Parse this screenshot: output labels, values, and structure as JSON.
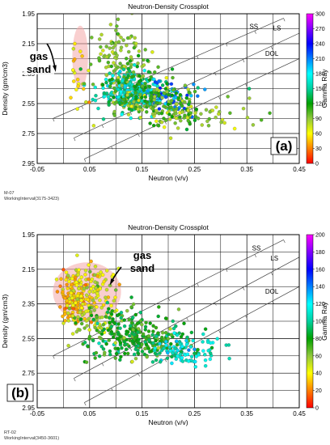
{
  "chart_data": [
    {
      "type": "scatter",
      "title": "Neutron-Density Crossplot",
      "xlabel": "Neutron (v/v)",
      "ylabel": "Density (gm/cm3)",
      "colorbar_label": "Gamma Ray",
      "xlim": [
        -0.05,
        0.45
      ],
      "ylim": [
        1.95,
        2.95
      ],
      "y_inverted": true,
      "x_ticks": [
        "-0.05",
        "0.05",
        "0.15",
        "0.25",
        "0.35",
        "0.45"
      ],
      "y_ticks": [
        "1.95",
        "2.15",
        "2.35",
        "2.55",
        "2.75",
        "2.95"
      ],
      "colorbar_range": [
        0,
        300
      ],
      "colorbar_ticks": [
        "300",
        "270",
        "240",
        "210",
        "180",
        "150",
        "120",
        "90",
        "60",
        "30",
        "0"
      ],
      "lithology_lines": [
        "SS",
        "LS",
        "DOL"
      ],
      "annotation": "gas sand",
      "panel_label": "(a)",
      "footer": [
        "M-07",
        "WorkingInterval(3175-3423)"
      ],
      "grid": true,
      "clusters": [
        {
          "cx": 0.03,
          "cy": 2.38,
          "sx": 0.012,
          "sy": 0.16,
          "gr": 60,
          "grs": 12,
          "n": 22
        },
        {
          "cx": 0.11,
          "cy": 2.22,
          "sx": 0.025,
          "sy": 0.13,
          "gr": 90,
          "grs": 12,
          "n": 100
        },
        {
          "cx": 0.13,
          "cy": 2.48,
          "sx": 0.03,
          "sy": 0.06,
          "gr": 160,
          "grs": 18,
          "n": 220
        },
        {
          "cx": 0.2,
          "cy": 2.5,
          "sx": 0.025,
          "sy": 0.045,
          "gr": 215,
          "grs": 12,
          "n": 70
        },
        {
          "cx": 0.17,
          "cy": 2.53,
          "sx": 0.04,
          "sy": 0.05,
          "gr": 100,
          "grs": 18,
          "n": 120
        },
        {
          "cx": 0.22,
          "cy": 2.63,
          "sx": 0.035,
          "sy": 0.05,
          "gr": 100,
          "grs": 15,
          "n": 60
        },
        {
          "cx": 0.14,
          "cy": 2.42,
          "sx": 0.04,
          "sy": 0.08,
          "gr": 110,
          "grs": 15,
          "n": 80
        },
        {
          "cx": 0.3,
          "cy": 2.62,
          "sx": 0.04,
          "sy": 0.05,
          "gr": 90,
          "grs": 12,
          "n": 25
        }
      ]
    },
    {
      "type": "scatter",
      "title": "Neutron-Density Crossplot",
      "xlabel": "Neutron (v/v)",
      "ylabel": "Density (gm/cm3)",
      "colorbar_label": "Gamma Ray",
      "xlim": [
        -0.05,
        0.45
      ],
      "ylim": [
        1.95,
        2.95
      ],
      "y_inverted": true,
      "x_ticks": [
        "-0.05",
        "0.05",
        "0.15",
        "0.25",
        "0.35",
        "0.45"
      ],
      "y_ticks": [
        "1.95",
        "2.15",
        "2.35",
        "2.55",
        "2.75",
        "2.95"
      ],
      "colorbar_range": [
        0,
        200
      ],
      "colorbar_ticks": [
        "200",
        "180",
        "160",
        "140",
        "120",
        "100",
        "80",
        "60",
        "40",
        "20",
        "0"
      ],
      "lithology_lines": [
        "SS",
        "LS",
        "DOL"
      ],
      "annotation": "gas sand",
      "panel_label": "(b)",
      "footer": [
        "RT-02",
        "WorkingInterval(3450-3601)"
      ],
      "grid": true,
      "clusters": [
        {
          "cx": 0.02,
          "cy": 2.32,
          "sx": 0.015,
          "sy": 0.07,
          "gr": 30,
          "grs": 8,
          "n": 130
        },
        {
          "cx": 0.05,
          "cy": 2.25,
          "sx": 0.025,
          "sy": 0.09,
          "gr": 45,
          "grs": 10,
          "n": 110
        },
        {
          "cx": 0.06,
          "cy": 2.45,
          "sx": 0.03,
          "sy": 0.06,
          "gr": 55,
          "grs": 10,
          "n": 60
        },
        {
          "cx": 0.14,
          "cy": 2.55,
          "sx": 0.05,
          "sy": 0.06,
          "gr": 80,
          "grs": 12,
          "n": 260
        },
        {
          "cx": 0.23,
          "cy": 2.62,
          "sx": 0.035,
          "sy": 0.045,
          "gr": 110,
          "grs": 12,
          "n": 90
        },
        {
          "cx": 0.1,
          "cy": 2.4,
          "sx": 0.02,
          "sy": 0.05,
          "gr": 80,
          "grs": 10,
          "n": 25
        }
      ]
    }
  ]
}
